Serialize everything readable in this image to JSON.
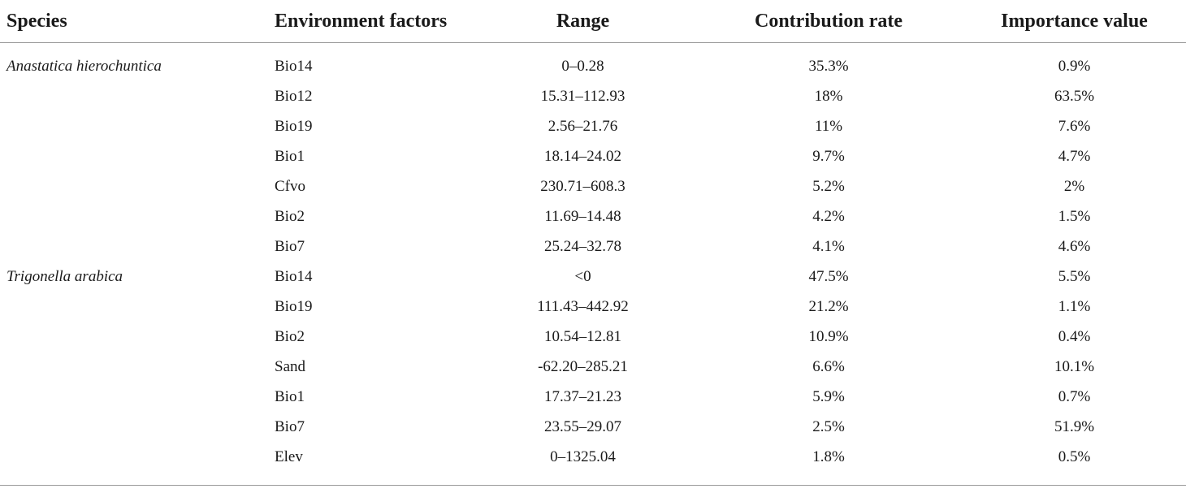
{
  "table": {
    "headers": {
      "species": "Species",
      "environment": "Environment factors",
      "range": "Range",
      "contribution": "Contribution rate",
      "importance": "Importance value"
    },
    "rows": [
      {
        "species": "Anastatica hierochuntica",
        "factor": "Bio14",
        "range": "0–0.28",
        "contribution": "35.3%",
        "importance": "0.9%"
      },
      {
        "species": "",
        "factor": "Bio12",
        "range": "15.31–112.93",
        "contribution": "18%",
        "importance": "63.5%"
      },
      {
        "species": "",
        "factor": "Bio19",
        "range": "2.56–21.76",
        "contribution": "11%",
        "importance": "7.6%"
      },
      {
        "species": "",
        "factor": "Bio1",
        "range": "18.14–24.02",
        "contribution": "9.7%",
        "importance": "4.7%"
      },
      {
        "species": "",
        "factor": "Cfvo",
        "range": "230.71–608.3",
        "contribution": "5.2%",
        "importance": "2%"
      },
      {
        "species": "",
        "factor": "Bio2",
        "range": "11.69–14.48",
        "contribution": "4.2%",
        "importance": "1.5%"
      },
      {
        "species": "",
        "factor": "Bio7",
        "range": "25.24–32.78",
        "contribution": "4.1%",
        "importance": "4.6%"
      },
      {
        "species": "Trigonella arabica",
        "factor": "Bio14",
        "range": "<0",
        "contribution": "47.5%",
        "importance": "5.5%"
      },
      {
        "species": "",
        "factor": "Bio19",
        "range": "111.43–442.92",
        "contribution": "21.2%",
        "importance": "1.1%"
      },
      {
        "species": "",
        "factor": "Bio2",
        "range": "10.54–12.81",
        "contribution": "10.9%",
        "importance": "0.4%"
      },
      {
        "species": "",
        "factor": "Sand",
        "range": "-62.20–285.21",
        "contribution": "6.6%",
        "importance": "10.1%"
      },
      {
        "species": "",
        "factor": "Bio1",
        "range": "17.37–21.23",
        "contribution": "5.9%",
        "importance": "0.7%"
      },
      {
        "species": "",
        "factor": "Bio7",
        "range": "23.55–29.07",
        "contribution": "2.5%",
        "importance": "51.9%"
      },
      {
        "species": "",
        "factor": "Elev",
        "range": "0–1325.04",
        "contribution": "1.8%",
        "importance": "0.5%"
      }
    ]
  }
}
